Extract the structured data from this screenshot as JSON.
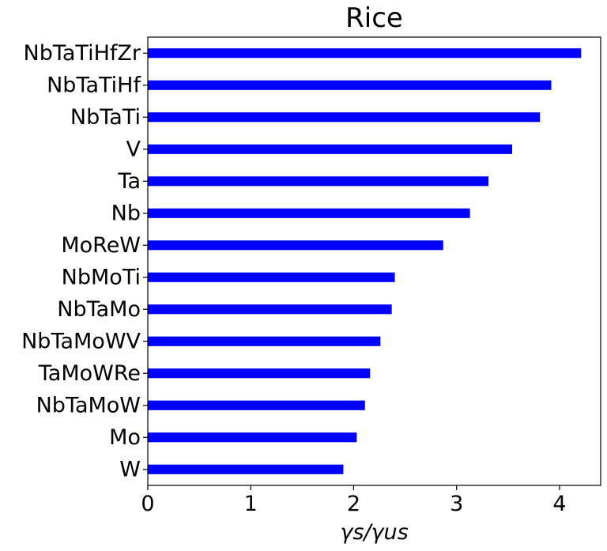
{
  "chart_data": {
    "type": "bar",
    "orientation": "horizontal",
    "title": "Rice",
    "xlabel": "γs/γus",
    "ylabel": "",
    "xlim": [
      0,
      4.4
    ],
    "xticks": [
      "0",
      "1",
      "2",
      "3",
      "4"
    ],
    "grid": false,
    "legend": "none",
    "bar_color": "#0000ff",
    "categories": [
      "NbTaTiHfZr",
      "NbTaTiHf",
      "NbTaTi",
      "V",
      "Ta",
      "Nb",
      "MoReW",
      "NbMoTi",
      "NbTaMo",
      "NbTaMoWV",
      "TaMoWRe",
      "NbTaMoW",
      "Mo",
      "W"
    ],
    "values": [
      4.21,
      3.92,
      3.81,
      3.54,
      3.31,
      3.13,
      2.87,
      2.4,
      2.37,
      2.26,
      2.16,
      2.11,
      2.03,
      1.9
    ]
  }
}
